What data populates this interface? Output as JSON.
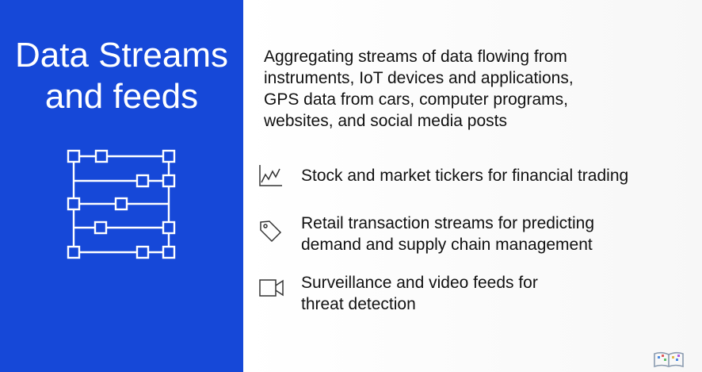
{
  "title": {
    "line1": "Data Streams",
    "line2": "and feeds"
  },
  "intro_lines": [
    "Aggregating streams of data flowing from",
    "instruments, IoT devices and applications,",
    "GPS data from cars, computer programs,",
    "websites, and social media posts"
  ],
  "items": [
    {
      "icon": "line-chart-icon",
      "lines": [
        "Stock and market tickers for financial trading"
      ]
    },
    {
      "icon": "price-tag-icon",
      "lines": [
        "Retail transaction streams for predicting",
        "demand and supply chain management"
      ]
    },
    {
      "icon": "video-camera-icon",
      "lines": [
        "Surveillance and video feeds for",
        "threat detection"
      ]
    }
  ],
  "colors": {
    "panel": "#1648d8",
    "text": "#111111",
    "icon": "#333333"
  }
}
